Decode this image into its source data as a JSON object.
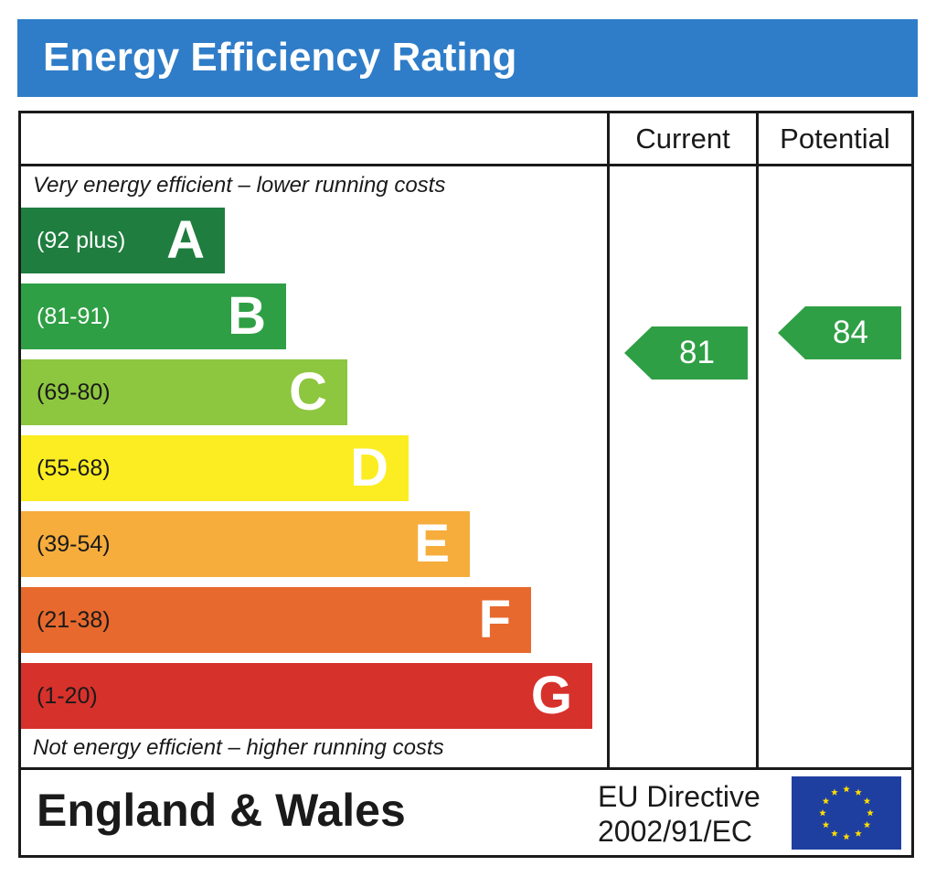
{
  "header": {
    "title": "Energy Efficiency Rating"
  },
  "columns": {
    "current": "Current",
    "potential": "Potential"
  },
  "captions": {
    "top": "Very energy efficient – lower running costs",
    "bottom": "Not energy efficient – higher running costs"
  },
  "chart_data": {
    "type": "bar",
    "title": "Energy Efficiency Rating",
    "categories": [
      "A",
      "B",
      "C",
      "D",
      "E",
      "F",
      "G"
    ],
    "bands": [
      {
        "letter": "A",
        "range": "(92 plus)",
        "color": "#1f7d3f",
        "text_color": "#ffffff"
      },
      {
        "letter": "B",
        "range": "(81-91)",
        "color": "#2f9f45",
        "text_color": "#ffffff"
      },
      {
        "letter": "C",
        "range": "(69-80)",
        "color": "#8dc63f",
        "text_color": "#1a1a1a"
      },
      {
        "letter": "D",
        "range": "(55-68)",
        "color": "#fbed21",
        "text_color": "#1a1a1a"
      },
      {
        "letter": "E",
        "range": "(39-54)",
        "color": "#f6ad3c",
        "text_color": "#1a1a1a"
      },
      {
        "letter": "F",
        "range": "(21-38)",
        "color": "#e7692d",
        "text_color": "#1a1a1a"
      },
      {
        "letter": "G",
        "range": "(1-20)",
        "color": "#d7312b",
        "text_color": "#1a1a1a"
      }
    ],
    "series": [
      {
        "name": "Current",
        "value": 81,
        "band": "B",
        "color": "#2f9f45"
      },
      {
        "name": "Potential",
        "value": 84,
        "band": "B",
        "color": "#2f9f45"
      }
    ]
  },
  "footer": {
    "region": "England & Wales",
    "directive_line1": "EU Directive",
    "directive_line2": "2002/91/EC",
    "flag_icon": "eu-flag-icon",
    "flag_color": "#1f3fa0",
    "star_color": "#ffdd00"
  }
}
